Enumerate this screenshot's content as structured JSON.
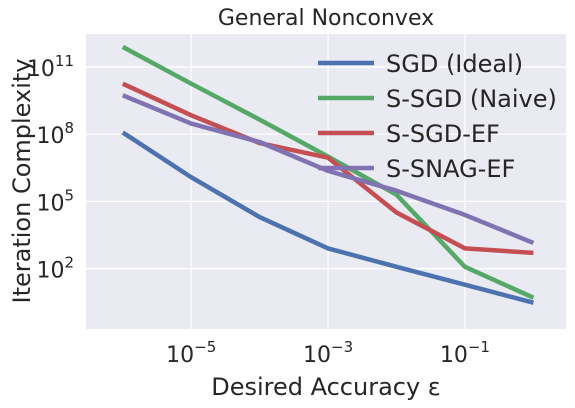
{
  "chart_data": {
    "type": "line",
    "title": "General Nonconvex",
    "xlabel": "Desired Accuracy ε",
    "ylabel": "Iteration Complexity",
    "x_scale": "log",
    "y_scale": "log",
    "xlim": [
      2.9e-07,
      3.0
    ],
    "ylim": [
      0.2,
      3000000000000.0
    ],
    "xticks": [
      {
        "value": 1e-05,
        "base": "10",
        "exp": "−5"
      },
      {
        "value": 0.001,
        "base": "10",
        "exp": "−3"
      },
      {
        "value": 0.1,
        "base": "10",
        "exp": "−1"
      }
    ],
    "yticks": [
      {
        "value": 100.0,
        "base": "10",
        "exp": "2"
      },
      {
        "value": 100000.0,
        "base": "10",
        "exp": "5"
      },
      {
        "value": 100000000.0,
        "base": "10",
        "exp": "8"
      },
      {
        "value": 100000000000.0,
        "base": "10",
        "exp": "11"
      }
    ],
    "grid": true,
    "legend": "upper right",
    "x": [
      1e-06,
      1e-05,
      0.0001,
      0.001,
      0.01,
      0.1,
      1
    ],
    "series": [
      {
        "name": "SGD (Ideal)",
        "color": "#4c72b0",
        "values": [
          120000000.0,
          1200000.0,
          20000.0,
          800.0,
          120.0,
          19.0,
          3.0
        ]
      },
      {
        "name": "S-SGD (Naive)",
        "color": "#55a868",
        "values": [
          800000000000.0,
          18000000000.0,
          450000000.0,
          10000000.0,
          200000.0,
          120.0,
          5.0
        ]
      },
      {
        "name": "S-SGD-EF",
        "color": "#c44e52",
        "values": [
          18000000000.0,
          700000000.0,
          40000000.0,
          9000000.0,
          32000.0,
          800.0,
          500.0
        ]
      },
      {
        "name": "S-SNAG-EF",
        "color": "#8172b2",
        "values": [
          5500000000.0,
          300000000.0,
          45000000.0,
          2300000.0,
          300000.0,
          25000.0,
          1400.0
        ]
      }
    ]
  }
}
